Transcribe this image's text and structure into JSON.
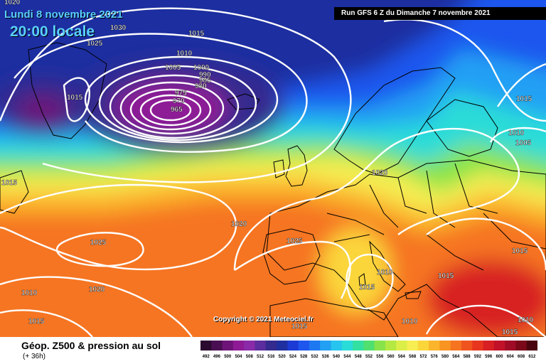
{
  "header": {
    "date": "Lundi 8 novembre 2021",
    "time": "20:00 locale",
    "run": "Run GFS 6 Z du Dimanche 7 novembre 2021"
  },
  "copyright": "Copyright © 2021 Meteociel.fr",
  "footer": {
    "title": "Géop. Z500 & pression au sol",
    "forecast_hour": "(+ 36h)"
  },
  "legend": {
    "ticks": [
      "492",
      "496",
      "500",
      "504",
      "508",
      "512",
      "516",
      "520",
      "524",
      "528",
      "532",
      "536",
      "540",
      "544",
      "548",
      "552",
      "556",
      "560",
      "564",
      "568",
      "572",
      "576",
      "580",
      "584",
      "588",
      "592",
      "596",
      "600",
      "604",
      "608",
      "612"
    ],
    "colors": [
      "#2a0a2e",
      "#4a0f52",
      "#6e1478",
      "#8e1a96",
      "#8a2aa8",
      "#5c2d9e",
      "#352a8e",
      "#1f2fa0",
      "#1c3ad4",
      "#1f56ee",
      "#1e78f2",
      "#22a0f4",
      "#26c4ee",
      "#2adcd8",
      "#33e0a2",
      "#50e070",
      "#88e34a",
      "#b4e842",
      "#dcee48",
      "#f6ee52",
      "#fbd63a",
      "#fbb52c",
      "#f99422",
      "#f67420",
      "#f0541e",
      "#e8361e",
      "#d82024",
      "#c2122a",
      "#a00c26",
      "#7a0818",
      "#4a0410"
    ]
  },
  "pressure_labels": [
    "1020",
    "1030",
    "1025",
    "1015",
    "1010",
    "1005",
    "1000",
    "990",
    "985",
    "980",
    "975",
    "970",
    "965",
    "1015",
    "1015",
    "1020",
    "1020",
    "1025",
    "1025",
    "1020",
    "1010",
    "1015",
    "1015",
    "1010",
    "1015",
    "1015",
    "1010",
    "1005",
    "1010",
    "1015",
    "1015",
    "1010",
    "1015"
  ],
  "map": {
    "sea_color": "#1e78f2",
    "coast_color": "#000000",
    "isobar_color": "#ffffff"
  }
}
